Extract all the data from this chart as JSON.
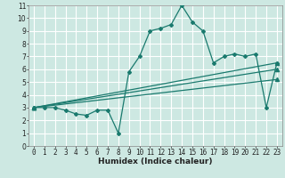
{
  "title": "",
  "xlabel": "Humidex (Indice chaleur)",
  "bg_color": "#cde8e2",
  "grid_color": "#ffffff",
  "line_color": "#1a7a6e",
  "series": {
    "main": [
      [
        0,
        3.0
      ],
      [
        1,
        3.0
      ],
      [
        2,
        3.0
      ],
      [
        3,
        2.8
      ],
      [
        4,
        2.5
      ],
      [
        5,
        2.4
      ],
      [
        6,
        2.8
      ],
      [
        7,
        2.8
      ],
      [
        8,
        1.0
      ],
      [
        9,
        5.8
      ],
      [
        10,
        7.0
      ],
      [
        11,
        9.0
      ],
      [
        12,
        9.2
      ],
      [
        13,
        9.5
      ],
      [
        14,
        11.0
      ],
      [
        15,
        9.7
      ],
      [
        16,
        9.0
      ],
      [
        17,
        6.5
      ],
      [
        18,
        7.0
      ],
      [
        19,
        7.2
      ],
      [
        20,
        7.0
      ],
      [
        21,
        7.2
      ],
      [
        22,
        3.0
      ],
      [
        23,
        6.5
      ]
    ],
    "linear1": [
      [
        0,
        3.0
      ],
      [
        23,
        6.5
      ]
    ],
    "linear2": [
      [
        0,
        3.0
      ],
      [
        23,
        5.2
      ]
    ],
    "linear3": [
      [
        0,
        3.0
      ],
      [
        23,
        6.0
      ]
    ]
  },
  "xlim": [
    -0.5,
    23.5
  ],
  "ylim": [
    0,
    11
  ],
  "yticks": [
    0,
    1,
    2,
    3,
    4,
    5,
    6,
    7,
    8,
    9,
    10,
    11
  ],
  "xticks": [
    0,
    1,
    2,
    3,
    4,
    5,
    6,
    7,
    8,
    9,
    10,
    11,
    12,
    13,
    14,
    15,
    16,
    17,
    18,
    19,
    20,
    21,
    22,
    23
  ],
  "xlabel_fontsize": 6.5,
  "tick_fontsize": 5.5,
  "linewidth": 0.9,
  "marker_size": 2.0
}
